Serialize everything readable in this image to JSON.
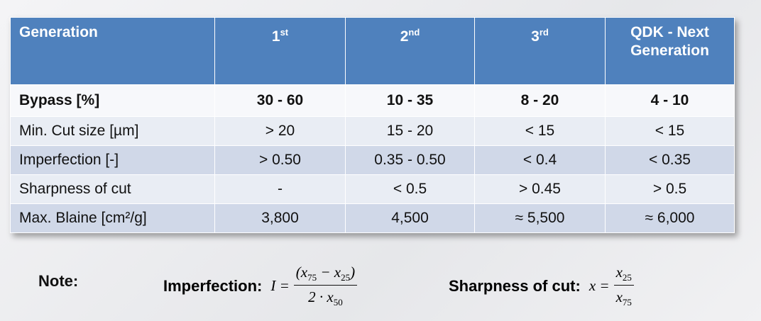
{
  "table": {
    "header": [
      "Generation",
      {
        "base": "1",
        "sup": "st"
      },
      {
        "base": "2",
        "sup": "nd"
      },
      {
        "base": "3",
        "sup": "rd"
      },
      "QDK - Next Generation"
    ],
    "rows": [
      [
        "Bypass [%]",
        "30 - 60",
        "10 - 35",
        "8 - 20",
        "4 - 10"
      ],
      [
        "Min. Cut size [µm]",
        "> 20",
        "15 - 20",
        "< 15",
        "< 15"
      ],
      [
        "Imperfection [-]",
        "> 0.50",
        "0.35 - 0.50",
        "< 0.4",
        "< 0.35"
      ],
      [
        "Sharpness of cut",
        "-",
        "< 0.5",
        "> 0.45",
        "> 0.5"
      ],
      [
        "Max. Blaine [cm²/g]",
        "3,800",
        "4,500",
        "≈ 5,500",
        "≈ 6,000"
      ]
    ]
  },
  "note": {
    "label": "Note:",
    "formulas": [
      {
        "label": "Imperfection:",
        "lhs": "I =",
        "numerator": [
          {
            "t": "(x"
          },
          {
            "sub": "75"
          },
          {
            "t": " − x"
          },
          {
            "sub": "25"
          },
          {
            "t": ")"
          }
        ],
        "denominator": [
          {
            "t": "2 · x"
          },
          {
            "sub": "50"
          }
        ]
      },
      {
        "label": "Sharpness of cut:",
        "lhs": "x =",
        "numerator": [
          {
            "t": "x"
          },
          {
            "sub": "25"
          }
        ],
        "denominator": [
          {
            "t": "x"
          },
          {
            "sub": "75"
          }
        ]
      }
    ]
  }
}
